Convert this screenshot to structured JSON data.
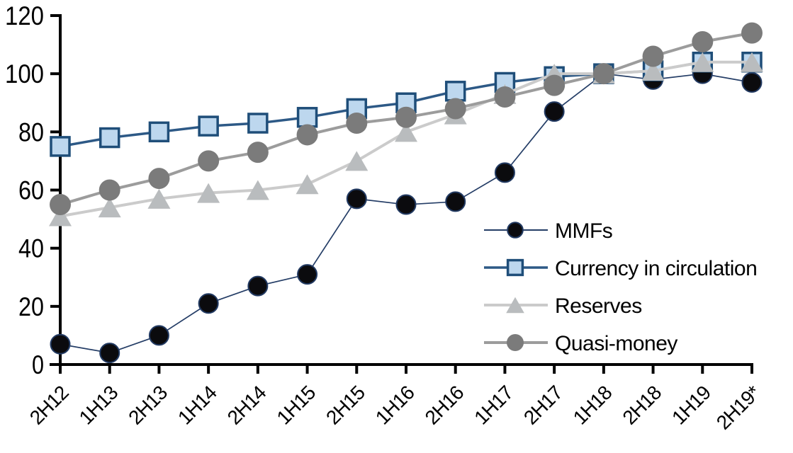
{
  "chart_data": {
    "type": "line",
    "title": "",
    "categories": [
      "2H12",
      "1H13",
      "2H13",
      "1H14",
      "2H14",
      "1H15",
      "2H15",
      "1H16",
      "2H16",
      "1H17",
      "2H17",
      "1H18",
      "2H18",
      "1H19",
      "2H19*"
    ],
    "series": [
      {
        "name": "MMFs",
        "marker": "circle",
        "marker_size": 27,
        "marker_fill": "#0b0b0e",
        "marker_stroke": "#223a62",
        "marker_stroke_width": 2,
        "line_color": "#243d66",
        "line_width": 1.7,
        "values": [
          7,
          4,
          10,
          21,
          27,
          31,
          57,
          55,
          56,
          66,
          87,
          100,
          98,
          100,
          97
        ]
      },
      {
        "name": "Currency in circulation",
        "marker": "square",
        "marker_size": 26,
        "marker_fill": "#bdd7ee",
        "marker_stroke": "#1f4e79",
        "marker_stroke_width": 3.5,
        "line_color": "#2d5986",
        "line_width": 3.5,
        "values": [
          75,
          78,
          80,
          82,
          83,
          85,
          88,
          90,
          94,
          97,
          99,
          100,
          101,
          104,
          104
        ]
      },
      {
        "name": "Reserves",
        "marker": "triangle",
        "marker_size": 32,
        "marker_fill": "#b9bcbe",
        "marker_stroke": "none",
        "marker_stroke_width": 0,
        "line_color": "#cbcbcb",
        "line_width": 4,
        "values": [
          51,
          54,
          57,
          59,
          60,
          62,
          70,
          80,
          86,
          93,
          100,
          100,
          101,
          104,
          104
        ]
      },
      {
        "name": "Quasi-money",
        "marker": "circle",
        "marker_size": 30,
        "marker_fill": "#7b7b7b",
        "marker_stroke": "none",
        "marker_stroke_width": 0,
        "line_color": "#9c9c9c",
        "line_width": 4,
        "values": [
          55,
          60,
          64,
          70,
          73,
          79,
          83,
          85,
          88,
          92,
          96,
          100,
          106,
          111,
          114
        ]
      }
    ],
    "ylim": [
      0,
      120
    ],
    "ytick_step": 20,
    "y_tick_labels": [
      "0",
      "20",
      "40",
      "60",
      "80",
      "100",
      "120"
    ],
    "grid": false,
    "legend_position": "inside-right",
    "background": "#ffffff",
    "axis_color": "#000000"
  },
  "legend": {
    "items": [
      "MMFs",
      "Currency in circulation",
      "Reserves",
      "Quasi-money"
    ]
  }
}
